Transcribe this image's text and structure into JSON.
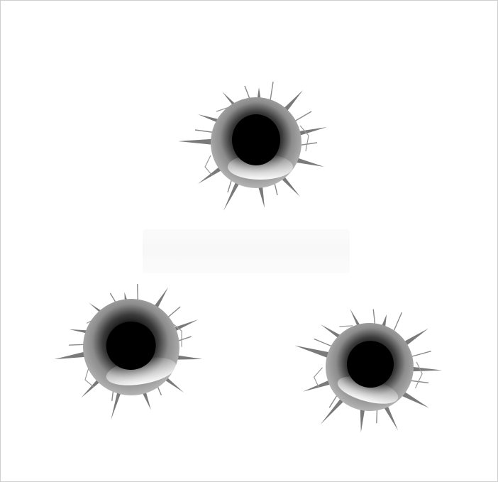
{
  "image": {
    "subject": "bullet-holes",
    "holes": [
      {
        "name": "bullet-hole-top"
      },
      {
        "name": "bullet-hole-bottom-left"
      },
      {
        "name": "bullet-hole-bottom-right"
      }
    ],
    "colors": {
      "background": "#ffffff",
      "border": "#cfcfcf",
      "hole_core": "#000000",
      "rim_dark": "#3a3a3a",
      "rim_light": "#f2f2f2",
      "crack": "#7a7a7a"
    }
  }
}
